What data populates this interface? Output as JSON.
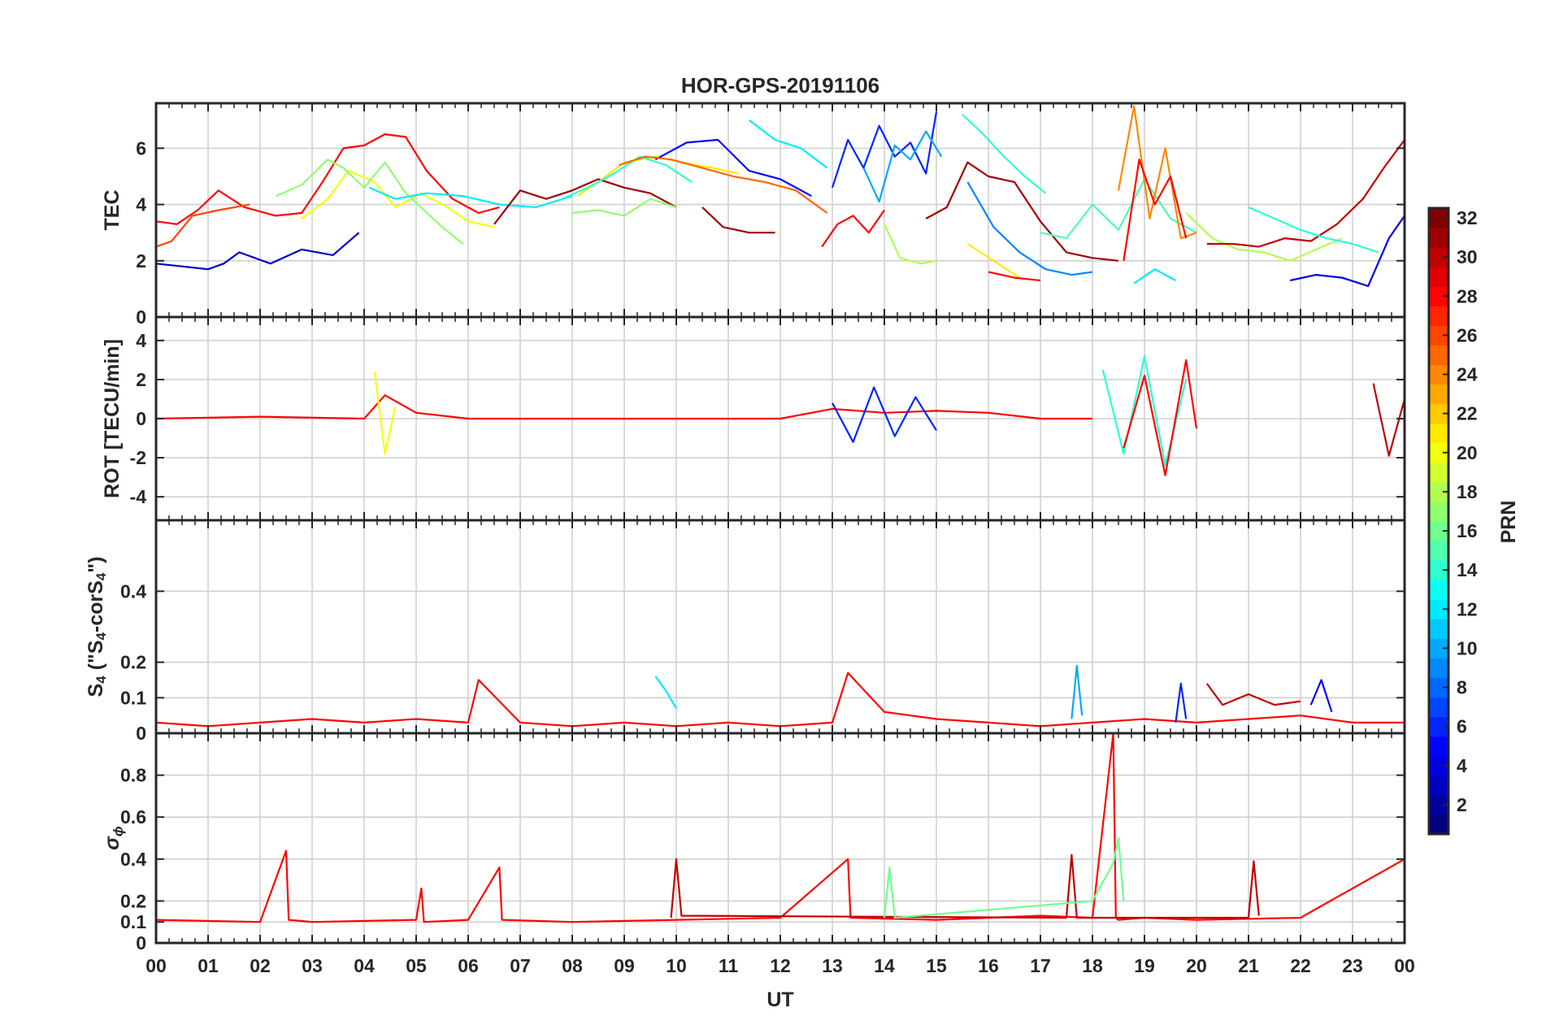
{
  "figure": {
    "title": "HOR-GPS-20191106",
    "xlabel": "UT"
  },
  "chart_data": [
    {
      "type": "line",
      "panel": "TEC",
      "title": "HOR-GPS-20191106",
      "ylabel": "TEC",
      "ylim": [
        0,
        7.6
      ],
      "yticks": [
        0,
        2,
        4,
        6
      ],
      "xlim": [
        0,
        24
      ],
      "xticks": [
        "00",
        "01",
        "02",
        "03",
        "04",
        "05",
        "06",
        "07",
        "08",
        "09",
        "10",
        "11",
        "12",
        "13",
        "14",
        "15",
        "16",
        "17",
        "18",
        "19",
        "20",
        "21",
        "22",
        "23",
        "00"
      ],
      "grid": true,
      "series": [
        {
          "prn": 3,
          "x": [
            0,
            0.5,
            1.0,
            1.3,
            1.6,
            2.2,
            2.8,
            3.4,
            3.9
          ],
          "y": [
            1.9,
            1.8,
            1.7,
            1.9,
            2.3,
            1.9,
            2.4,
            2.2,
            3.0
          ]
        },
        {
          "prn": 28,
          "x": [
            0,
            0.4,
            0.8,
            1.2,
            1.7,
            2.3,
            2.8,
            3.2,
            3.6,
            4.0,
            4.4,
            4.8,
            5.2,
            5.7,
            6.2,
            6.6
          ],
          "y": [
            3.4,
            3.3,
            3.8,
            4.5,
            3.9,
            3.6,
            3.7,
            4.8,
            6.0,
            6.1,
            6.5,
            6.4,
            5.2,
            4.2,
            3.7,
            3.9
          ]
        },
        {
          "prn": 26,
          "x": [
            0,
            0.3,
            0.7,
            1.2,
            1.8
          ],
          "y": [
            2.5,
            2.7,
            3.6,
            3.8,
            4.0
          ]
        },
        {
          "prn": 20,
          "x": [
            2.8,
            3.3,
            3.7,
            4.2,
            4.6,
            5.1,
            5.6,
            6.0,
            6.5
          ],
          "y": [
            3.5,
            4.2,
            5.2,
            4.8,
            3.9,
            4.4,
            3.9,
            3.4,
            3.2
          ]
        },
        {
          "prn": 17,
          "x": [
            2.3,
            2.8,
            3.3,
            3.6,
            4.0,
            4.4,
            4.8,
            5.5,
            5.9
          ],
          "y": [
            4.3,
            4.7,
            5.6,
            5.3,
            4.6,
            5.5,
            4.4,
            3.2,
            2.6
          ]
        },
        {
          "prn": 12,
          "x": [
            4.1,
            4.6,
            5.2,
            5.9,
            6.6,
            7.3,
            8.0
          ],
          "y": [
            4.6,
            4.2,
            4.4,
            4.3,
            4.0,
            3.9,
            4.3
          ]
        },
        {
          "prn": 31,
          "x": [
            6.5,
            7.0,
            7.5,
            8.0,
            8.5,
            9.0,
            9.5,
            10.0
          ],
          "y": [
            3.3,
            4.5,
            4.2,
            4.5,
            4.9,
            4.6,
            4.4,
            3.9
          ]
        },
        {
          "prn": 21,
          "x": [
            8.1,
            8.5,
            9.0,
            9.6,
            10.1,
            10.7,
            11.2
          ],
          "y": [
            4.3,
            4.8,
            5.5,
            5.7,
            5.5,
            5.3,
            5.1
          ]
        },
        {
          "prn": 17,
          "x": [
            8.0,
            8.5,
            9.0,
            9.5,
            10.0
          ],
          "y": [
            3.7,
            3.8,
            3.6,
            4.2,
            3.9
          ]
        },
        {
          "prn": 5,
          "x": [
            9.6,
            10.2,
            10.8,
            11.4,
            12.0,
            12.6
          ],
          "y": [
            5.6,
            6.2,
            6.3,
            5.2,
            4.9,
            4.3
          ]
        },
        {
          "prn": 14,
          "x": [
            7.8,
            8.3,
            8.8,
            9.3,
            9.8,
            10.3
          ],
          "y": [
            4.2,
            4.6,
            5.1,
            5.7,
            5.4,
            4.8
          ]
        },
        {
          "prn": 25,
          "x": [
            8.9,
            9.4,
            9.9,
            10.5,
            11.1,
            11.7,
            12.3,
            12.9
          ],
          "y": [
            5.4,
            5.7,
            5.6,
            5.3,
            5.0,
            4.8,
            4.5,
            3.7
          ]
        },
        {
          "prn": 31,
          "x": [
            10.5,
            10.9,
            11.4,
            11.9
          ],
          "y": [
            3.9,
            3.2,
            3.0,
            3.0
          ]
        },
        {
          "prn": 12,
          "x": [
            11.4,
            11.9,
            12.4,
            12.9
          ],
          "y": [
            7.0,
            6.3,
            6.0,
            5.3
          ]
        },
        {
          "prn": 6,
          "x": [
            13.0,
            13.3,
            13.6,
            13.9,
            14.2,
            14.5,
            14.8,
            15.0
          ],
          "y": [
            4.6,
            6.3,
            5.3,
            6.8,
            5.7,
            6.2,
            5.1,
            7.3
          ]
        },
        {
          "prn": 10,
          "x": [
            13.6,
            13.9,
            14.2,
            14.5,
            14.8,
            15.1
          ],
          "y": [
            5.3,
            4.1,
            6.1,
            5.6,
            6.6,
            5.7
          ]
        },
        {
          "prn": 28,
          "x": [
            12.8,
            13.1,
            13.4,
            13.7,
            14.0
          ],
          "y": [
            2.5,
            3.3,
            3.6,
            3.0,
            3.8
          ]
        },
        {
          "prn": 18,
          "x": [
            14.0,
            14.3,
            14.7,
            15.0
          ],
          "y": [
            3.3,
            2.1,
            1.9,
            2.0
          ]
        },
        {
          "prn": 14,
          "x": [
            15.5,
            15.9,
            16.3,
            16.7,
            17.1
          ],
          "y": [
            7.2,
            6.5,
            5.7,
            5.0,
            4.4
          ]
        },
        {
          "prn": 31,
          "x": [
            14.8,
            15.2,
            15.6,
            16.0,
            16.5,
            17.0,
            17.5,
            18.0,
            18.5
          ],
          "y": [
            3.5,
            3.9,
            5.5,
            5.0,
            4.8,
            3.4,
            2.3,
            2.1,
            2.0
          ]
        },
        {
          "prn": 9,
          "x": [
            15.6,
            16.1,
            16.6,
            17.1,
            17.6,
            18.0
          ],
          "y": [
            4.8,
            3.2,
            2.3,
            1.7,
            1.5,
            1.6
          ]
        },
        {
          "prn": 21,
          "x": [
            15.6,
            16.1,
            16.6
          ],
          "y": [
            2.6,
            2.0,
            1.4
          ]
        },
        {
          "prn": 28,
          "x": [
            16.0,
            16.5,
            17.0
          ],
          "y": [
            1.6,
            1.4,
            1.3
          ]
        },
        {
          "prn": 15,
          "x": [
            17.0,
            17.5,
            18.0,
            18.5,
            19.0,
            19.5,
            20.0
          ],
          "y": [
            3.0,
            2.8,
            4.0,
            3.1,
            4.9,
            3.5,
            3.0
          ]
        },
        {
          "prn": 24,
          "x": [
            18.5,
            18.8,
            19.1,
            19.4,
            19.7,
            20.0
          ],
          "y": [
            4.5,
            7.5,
            3.5,
            6.0,
            2.8,
            3.0
          ]
        },
        {
          "prn": 28,
          "x": [
            18.6,
            18.9,
            19.2,
            19.5,
            19.8
          ],
          "y": [
            2.0,
            5.6,
            4.0,
            5.0,
            2.8
          ]
        },
        {
          "prn": 12,
          "x": [
            18.8,
            19.2,
            19.6
          ],
          "y": [
            1.2,
            1.7,
            1.3
          ]
        },
        {
          "prn": 18,
          "x": [
            19.8,
            20.3,
            20.8,
            21.3,
            21.8,
            22.3,
            22.8
          ],
          "y": [
            3.7,
            2.8,
            2.4,
            2.3,
            2.0,
            2.4,
            2.8
          ]
        },
        {
          "prn": 30,
          "x": [
            20.2,
            20.7,
            21.2,
            21.7,
            22.2,
            22.7,
            23.2,
            23.6,
            24.0
          ],
          "y": [
            2.6,
            2.6,
            2.5,
            2.8,
            2.7,
            3.3,
            4.2,
            5.3,
            6.3
          ]
        },
        {
          "prn": 14,
          "x": [
            21.0,
            21.5,
            22.0,
            22.5,
            23.0,
            23.5
          ],
          "y": [
            3.9,
            3.5,
            3.1,
            2.8,
            2.6,
            2.3
          ]
        },
        {
          "prn": 4,
          "x": [
            21.8,
            22.3,
            22.8,
            23.3,
            23.7,
            24.0
          ],
          "y": [
            1.3,
            1.5,
            1.4,
            1.1,
            2.8,
            3.6
          ]
        }
      ]
    },
    {
      "type": "line",
      "panel": "ROT",
      "ylabel": "ROT [TECU/min]",
      "ylim": [
        -5.2,
        5.2
      ],
      "yticks": [
        -4,
        -2,
        0,
        2,
        4
      ],
      "xlim": [
        0,
        24
      ],
      "grid": true,
      "series": [
        {
          "prn": 28,
          "x": [
            0,
            2,
            4,
            4.4,
            5,
            6,
            8,
            10,
            12,
            13,
            14,
            15,
            16,
            17,
            18
          ],
          "y": [
            0,
            0.1,
            0,
            1.2,
            0.3,
            0,
            0,
            0,
            0,
            0.5,
            0.3,
            0.4,
            0.3,
            0,
            0
          ]
        },
        {
          "prn": 6,
          "x": [
            13.0,
            13.4,
            13.8,
            14.2,
            14.6,
            15.0
          ],
          "y": [
            0.8,
            -1.2,
            1.6,
            -0.9,
            1.1,
            -0.6
          ]
        },
        {
          "prn": 20,
          "x": [
            4.2,
            4.4,
            4.6
          ],
          "y": [
            2.4,
            -1.8,
            0.6
          ]
        },
        {
          "prn": 14,
          "x": [
            18.2,
            18.6,
            19.0,
            19.4,
            19.8
          ],
          "y": [
            2.5,
            -1.8,
            3.2,
            -2.4,
            2.0
          ]
        },
        {
          "prn": 28,
          "x": [
            18.6,
            19.0,
            19.4,
            19.8,
            20.0
          ],
          "y": [
            -1.5,
            2.2,
            -2.9,
            3.0,
            -0.5
          ]
        },
        {
          "prn": 30,
          "x": [
            23.4,
            23.7,
            24.0
          ],
          "y": [
            1.8,
            -1.9,
            1.0
          ]
        }
      ]
    },
    {
      "type": "line",
      "panel": "S4",
      "ylabel_parts": [
        "S",
        "4",
        " (\"S",
        "4",
        "-corS",
        "4",
        "\")"
      ],
      "ylim": [
        0,
        0.6
      ],
      "yticks": [
        0,
        0.1,
        0.2,
        0.4
      ],
      "xlim": [
        0,
        24
      ],
      "grid": true,
      "series": [
        {
          "prn": 28,
          "x": [
            0,
            1,
            2,
            3,
            4,
            5,
            6,
            6.2,
            7,
            8,
            9,
            10,
            11,
            12,
            13,
            13.3,
            14,
            15,
            16,
            17,
            18,
            19,
            20,
            21,
            22,
            23,
            24
          ],
          "y": [
            0.03,
            0.02,
            0.03,
            0.04,
            0.03,
            0.04,
            0.03,
            0.15,
            0.03,
            0.02,
            0.03,
            0.02,
            0.03,
            0.02,
            0.03,
            0.17,
            0.06,
            0.04,
            0.03,
            0.02,
            0.03,
            0.04,
            0.03,
            0.04,
            0.05,
            0.03,
            0.03
          ]
        },
        {
          "prn": 12,
          "x": [
            9.6,
            9.8,
            10.0
          ],
          "y": [
            0.16,
            0.12,
            0.07
          ]
        },
        {
          "prn": 10,
          "x": [
            17.6,
            17.7,
            17.8
          ],
          "y": [
            0.04,
            0.19,
            0.05
          ]
        },
        {
          "prn": 6,
          "x": [
            19.6,
            19.7,
            19.8
          ],
          "y": [
            0.03,
            0.14,
            0.04
          ]
        },
        {
          "prn": 30,
          "x": [
            20.2,
            20.5,
            21.0,
            21.5,
            22.0
          ],
          "y": [
            0.14,
            0.08,
            0.11,
            0.08,
            0.09
          ]
        },
        {
          "prn": 5,
          "x": [
            22.2,
            22.4,
            22.6
          ],
          "y": [
            0.08,
            0.15,
            0.06
          ]
        }
      ]
    },
    {
      "type": "line",
      "panel": "sigma_phi",
      "ylabel": "σ",
      "ylabel_sub": "ϕ",
      "ylim": [
        0,
        1
      ],
      "yticks": [
        0,
        0.1,
        0.2,
        0.4,
        0.6,
        0.8
      ],
      "xlim": [
        0,
        24
      ],
      "grid": true,
      "series": [
        {
          "prn": 28,
          "x": [
            0,
            2,
            2.5,
            2.55,
            3,
            5,
            5.1,
            5.15,
            6,
            6.6,
            6.65,
            8,
            10,
            12,
            13.3,
            13.35,
            15,
            17,
            18,
            18.4,
            18.45,
            18.5,
            19,
            20,
            22,
            24
          ],
          "y": [
            0.11,
            0.1,
            0.44,
            0.11,
            0.1,
            0.11,
            0.26,
            0.1,
            0.11,
            0.36,
            0.11,
            0.1,
            0.11,
            0.12,
            0.4,
            0.12,
            0.11,
            0.13,
            0.12,
            1.0,
            0.12,
            0.11,
            0.12,
            0.11,
            0.12,
            0.4
          ]
        },
        {
          "prn": 30,
          "x": [
            9.9,
            10.0,
            10.1,
            17.5,
            17.6,
            17.7,
            21.0,
            21.1,
            21.2
          ],
          "y": [
            0.12,
            0.4,
            0.13,
            0.12,
            0.42,
            0.12,
            0.12,
            0.39,
            0.13
          ]
        },
        {
          "prn": 16,
          "x": [
            14.0,
            14.1,
            14.2,
            18.0,
            18.4,
            18.5,
            18.6
          ],
          "y": [
            0.12,
            0.36,
            0.12,
            0.2,
            0.38,
            0.5,
            0.2
          ]
        }
      ]
    }
  ],
  "colorbar": {
    "label": "PRN",
    "min": 1,
    "max": 32,
    "ticks": [
      2,
      4,
      6,
      8,
      10,
      12,
      14,
      16,
      18,
      20,
      22,
      24,
      26,
      28,
      30,
      32
    ],
    "colormap": "jet"
  }
}
